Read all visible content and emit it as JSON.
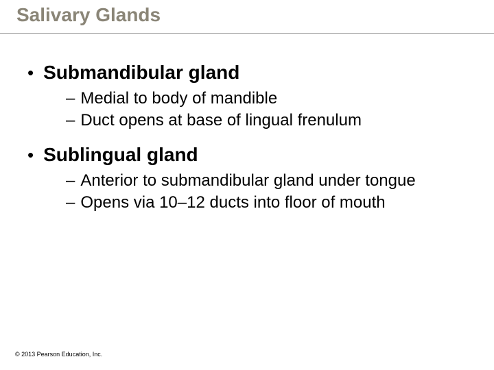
{
  "slide": {
    "title": "Salivary Glands",
    "title_color": "#8a8577",
    "title_fontsize": 28,
    "rule_color": "#999999",
    "background": "#ffffff",
    "text_color": "#000000",
    "bullets": [
      {
        "text": "Submandibular gland",
        "bold": true,
        "fontsize": 28,
        "sub": [
          {
            "text": "Medial to body of mandible",
            "fontsize": 24
          },
          {
            "text": "Duct opens at base of lingual frenulum",
            "fontsize": 24
          }
        ]
      },
      {
        "text": "Sublingual gland",
        "bold": true,
        "fontsize": 28,
        "sub": [
          {
            "text": "Anterior to submandibular gland under tongue",
            "fontsize": 24
          },
          {
            "text": "Opens via 10–12 ducts into floor of mouth",
            "fontsize": 24
          }
        ]
      }
    ],
    "copyright": "© 2013 Pearson Education, Inc.",
    "copyright_fontsize": 9
  }
}
